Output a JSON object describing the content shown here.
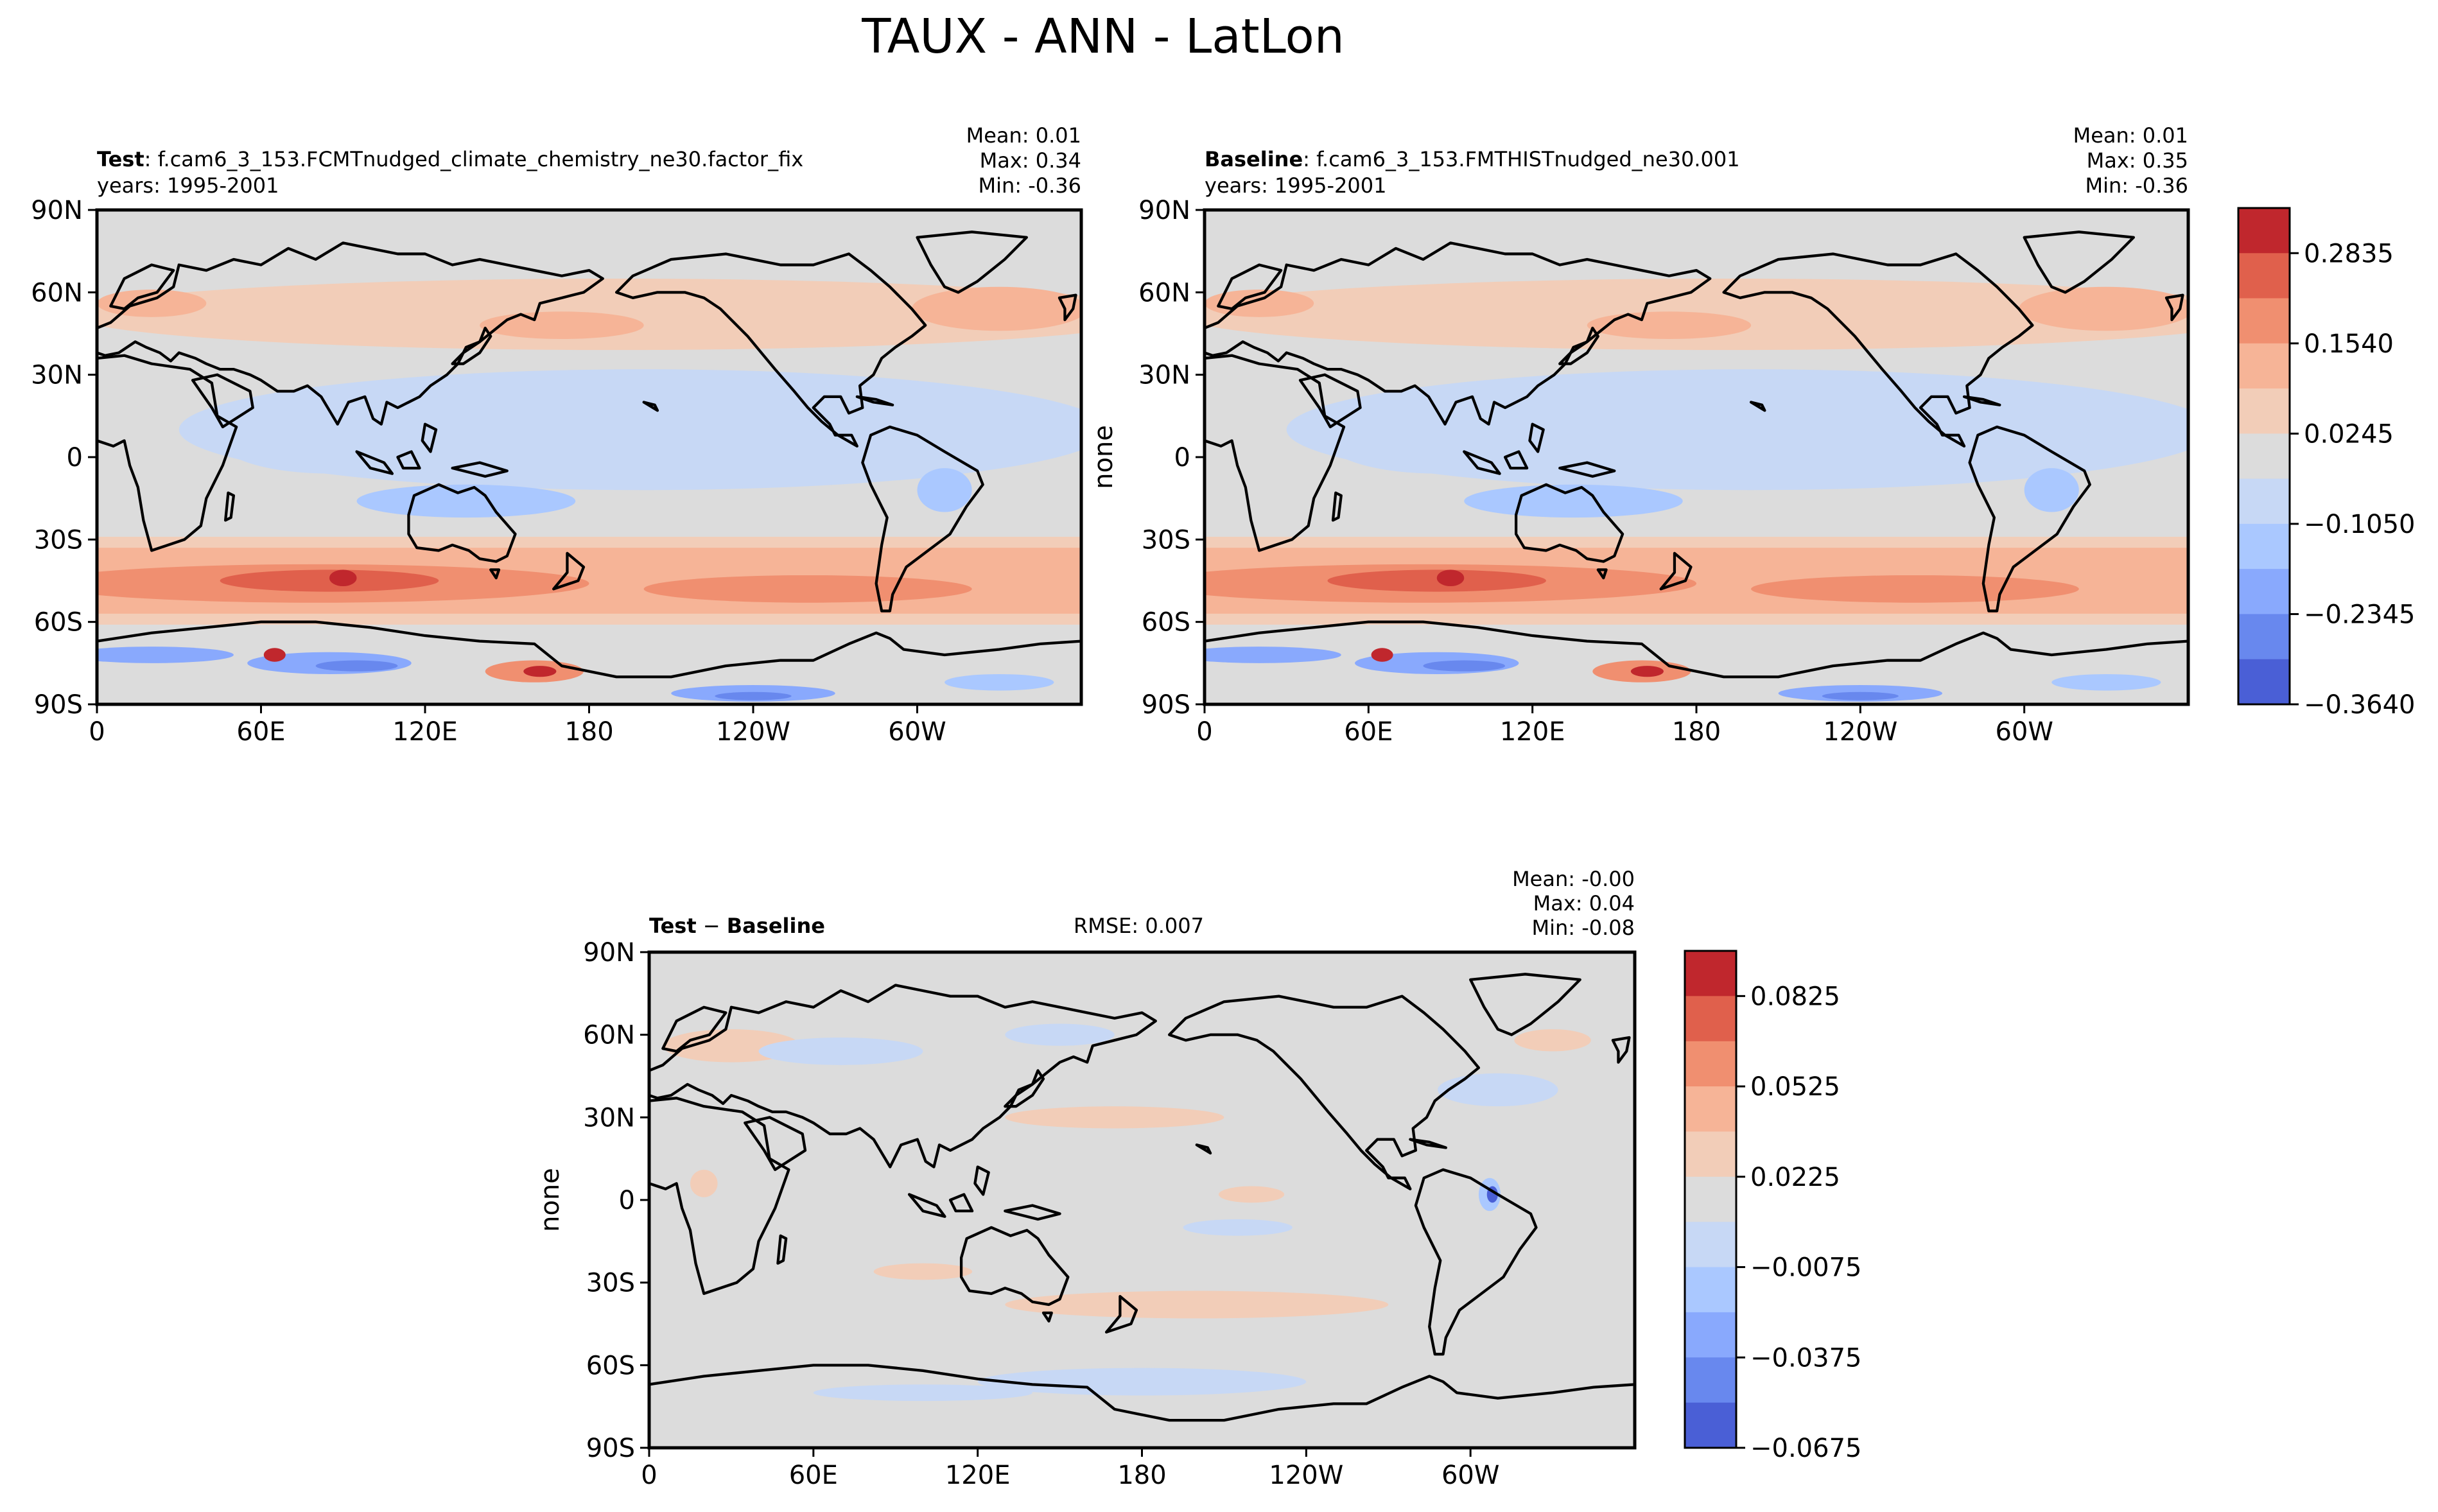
{
  "figure": {
    "title": "TAUX - ANN - LatLon"
  },
  "colors": {
    "levels": [
      "#4a5fd6",
      "#6888ee",
      "#89a9fd",
      "#aac8ff",
      "#c7d8f5",
      "#dcdcdc",
      "#f2cdb8",
      "#f6b497",
      "#f08f70",
      "#e0604c",
      "#c0272d"
    ],
    "background": "#dcdcdc",
    "coast": "#000000"
  },
  "chart_data": [
    {
      "type": "contour-map",
      "panel": "test",
      "label_bold": "Test",
      "label_rest": ": f.cam6_3_153.FCMTnudged_climate_chemistry_ne30.factor_fix",
      "years": "years: 1995-2001",
      "stats": {
        "mean": "Mean:  0.01",
        "max": "Max:  0.34",
        "min": "Min: -0.36"
      },
      "ylabel": "",
      "xticks": [
        "0",
        "60E",
        "120E",
        "180",
        "120W",
        "60W"
      ],
      "yticks": [
        "90N",
        "60N",
        "30N",
        "0",
        "30S",
        "60S",
        "90S"
      ],
      "xlim": [
        0,
        360
      ],
      "ylim": [
        -90,
        90
      ],
      "contour_levels": [
        -0.364,
        -0.2345,
        -0.105,
        0.0245,
        0.154,
        0.2835
      ],
      "max_value": 0.34,
      "min_value": -0.36,
      "mean_value": 0.01
    },
    {
      "type": "contour-map",
      "panel": "baseline",
      "label_bold": "Baseline",
      "label_rest": ": f.cam6_3_153.FMTHISTnudged_ne30.001",
      "years": "years: 1995-2001",
      "stats": {
        "mean": "Mean:  0.01",
        "max": "Max:  0.35",
        "min": "Min: -0.36"
      },
      "ylabel": "none",
      "xticks": [
        "0",
        "60E",
        "120E",
        "180",
        "120W",
        "60W"
      ],
      "yticks": [
        "90N",
        "60N",
        "30N",
        "0",
        "30S",
        "60S",
        "90S"
      ],
      "xlim": [
        0,
        360
      ],
      "ylim": [
        -90,
        90
      ],
      "colorbar_ticks": [
        "0.2835",
        "0.1540",
        "0.0245",
        "−0.1050",
        "−0.2345",
        "−0.3640"
      ],
      "max_value": 0.35,
      "min_value": -0.36,
      "mean_value": 0.01
    },
    {
      "type": "contour-map",
      "panel": "difference",
      "label_bold": "Test",
      "label_mid": " − ",
      "label_bold2": "Baseline",
      "rmse": "RMSE: 0.007",
      "stats": {
        "mean": "Mean: -0.00",
        "max": "Max:  0.04",
        "min": "Min: -0.08"
      },
      "ylabel": "none",
      "xticks": [
        "0",
        "60E",
        "120E",
        "180",
        "120W",
        "60W"
      ],
      "yticks": [
        "90N",
        "60N",
        "30N",
        "0",
        "30S",
        "60S",
        "90S"
      ],
      "xlim": [
        0,
        360
      ],
      "ylim": [
        -90,
        90
      ],
      "colorbar_ticks": [
        "0.0825",
        "0.0525",
        "0.0225",
        "−0.0075",
        "−0.0375",
        "−0.0675"
      ],
      "max_value": 0.04,
      "min_value": -0.08,
      "mean_value": -0.0
    }
  ]
}
